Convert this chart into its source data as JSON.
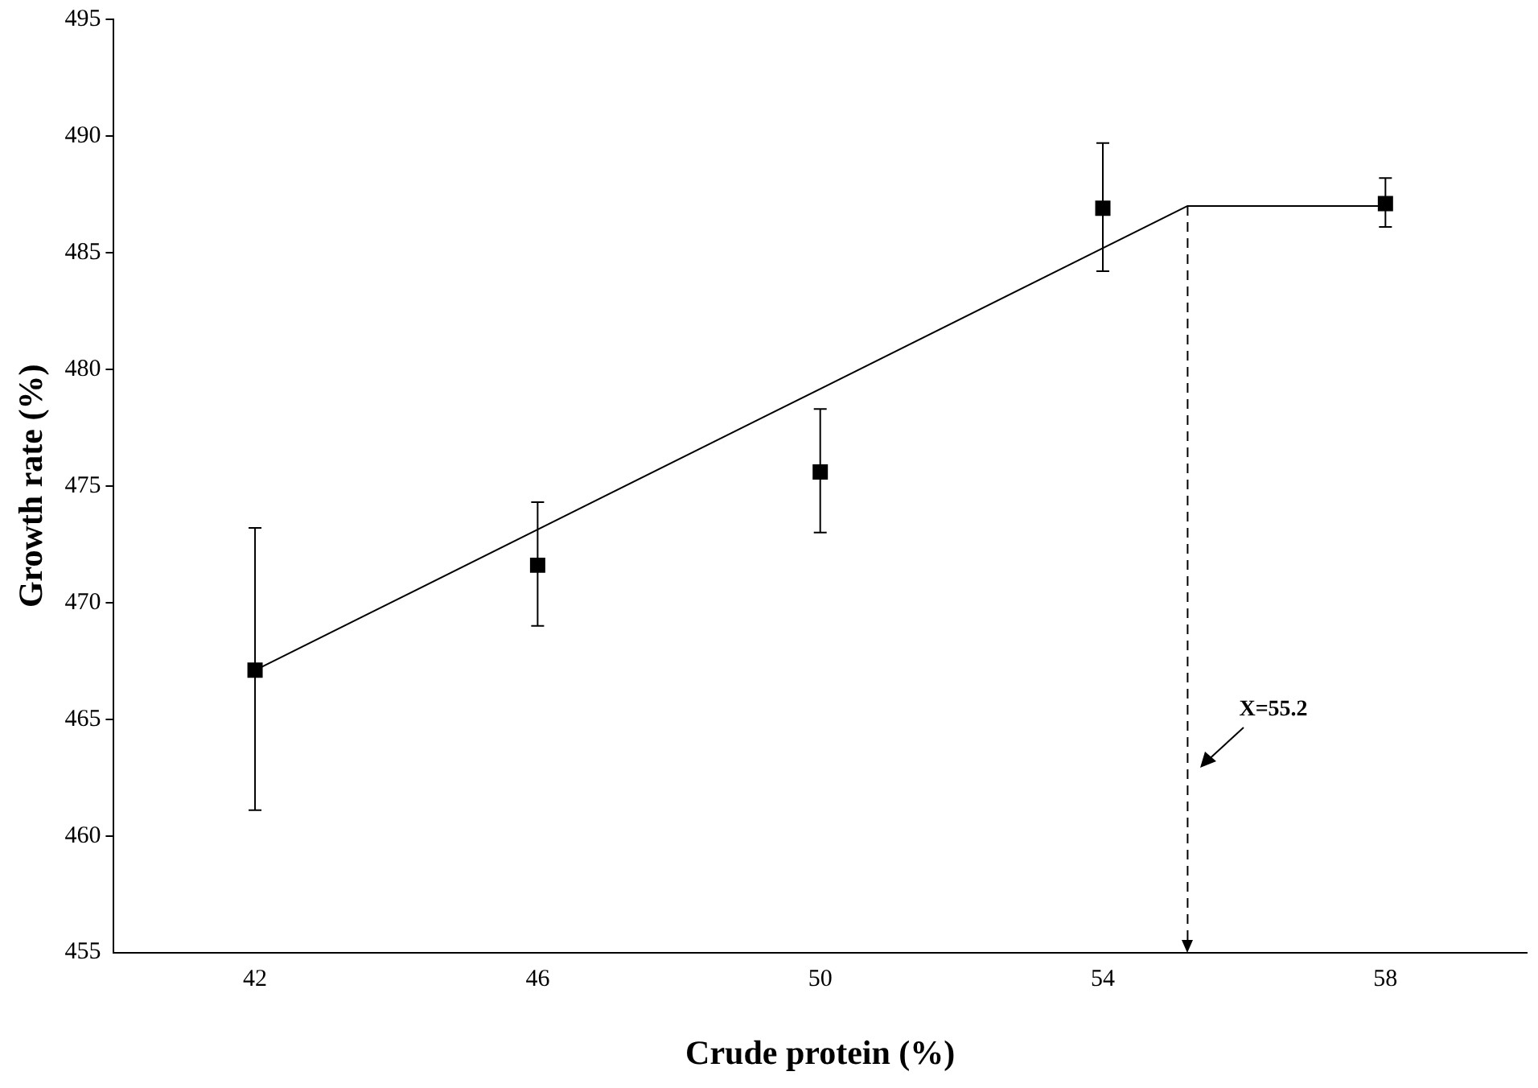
{
  "chart_data": {
    "type": "scatter",
    "xlabel": "Crude protein (%)",
    "ylabel": "Growth rate (%)",
    "x": [
      42,
      46,
      50,
      54,
      58
    ],
    "series": [
      {
        "type": "scatter",
        "color": "#000000",
        "marker": "square",
        "values": [
          467.1,
          471.6,
          475.6,
          486.9,
          487.1
        ],
        "errors": [
          [
            461.1,
            473.2
          ],
          [
            469.0,
            474.3
          ],
          [
            473.0,
            478.3
          ],
          [
            484.2,
            489.7
          ],
          [
            486.1,
            488.2
          ]
        ]
      },
      {
        "type": "line",
        "color": "#000000",
        "marker": "none",
        "line_style": "solid",
        "x": [
          42,
          55.2,
          58
        ],
        "values": [
          467.1,
          487.0,
          487.0
        ]
      }
    ],
    "ref_lines": [
      {
        "axis": "x",
        "value": 55.2,
        "label": "X=55.2",
        "color": "#000000",
        "line_style": "dashed"
      }
    ],
    "xlim": [
      40,
      60
    ],
    "xticks": [
      42,
      46,
      50,
      54,
      58
    ],
    "ylim": [
      455,
      495
    ],
    "yticks": [
      455,
      460,
      465,
      470,
      475,
      480,
      485,
      490,
      495
    ],
    "grid": false,
    "legend": false
  }
}
